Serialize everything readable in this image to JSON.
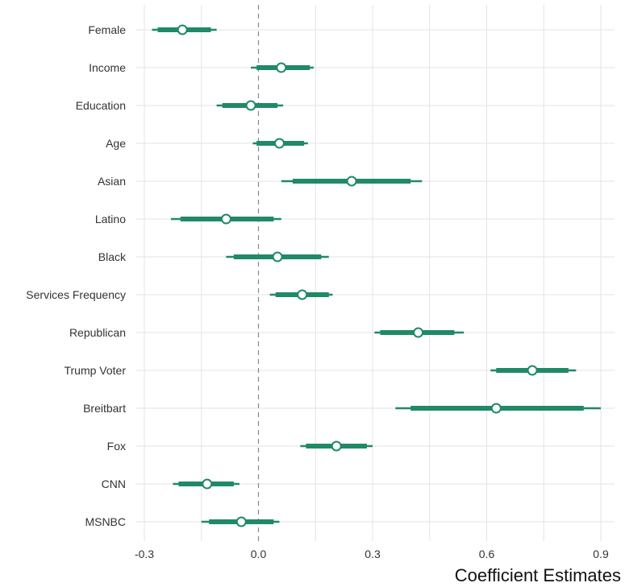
{
  "chart_data": {
    "type": "coefficient-plot",
    "xlabel": "Coefficient Estimates",
    "xlim": [
      -0.32,
      0.92
    ],
    "xticks": [
      -0.3,
      0.0,
      0.3,
      0.6,
      0.9
    ],
    "xtick_labels": [
      "-0.3",
      "0.0",
      "0.3",
      "0.6",
      "0.9"
    ],
    "reference_line": 0,
    "grid": true,
    "colors": {
      "interval": "#1f8a64",
      "point_fill": "#ffffff",
      "point_stroke": "#1f8a64"
    },
    "variables": [
      {
        "label": "Female",
        "estimate": -0.2,
        "ci90": [
          -0.265,
          -0.125
        ],
        "ci95": [
          -0.28,
          -0.11
        ]
      },
      {
        "label": "Income",
        "estimate": 0.06,
        "ci90": [
          -0.005,
          0.135
        ],
        "ci95": [
          -0.02,
          0.145
        ]
      },
      {
        "label": "Education",
        "estimate": -0.02,
        "ci90": [
          -0.095,
          0.05
        ],
        "ci95": [
          -0.11,
          0.065
        ]
      },
      {
        "label": "Age",
        "estimate": 0.055,
        "ci90": [
          -0.005,
          0.12
        ],
        "ci95": [
          -0.015,
          0.13
        ]
      },
      {
        "label": "Asian",
        "estimate": 0.245,
        "ci90": [
          0.09,
          0.4
        ],
        "ci95": [
          0.06,
          0.43
        ]
      },
      {
        "label": "Latino",
        "estimate": -0.085,
        "ci90": [
          -0.205,
          0.04
        ],
        "ci95": [
          -0.23,
          0.06
        ]
      },
      {
        "label": "Black",
        "estimate": 0.05,
        "ci90": [
          -0.065,
          0.165
        ],
        "ci95": [
          -0.085,
          0.185
        ]
      },
      {
        "label": "Services Frequency",
        "estimate": 0.115,
        "ci90": [
          0.045,
          0.185
        ],
        "ci95": [
          0.03,
          0.195
        ]
      },
      {
        "label": "Republican",
        "estimate": 0.42,
        "ci90": [
          0.32,
          0.515
        ],
        "ci95": [
          0.305,
          0.54
        ]
      },
      {
        "label": "Trump Voter",
        "estimate": 0.72,
        "ci90": [
          0.625,
          0.815
        ],
        "ci95": [
          0.61,
          0.835
        ]
      },
      {
        "label": "Breitbart",
        "estimate": 0.625,
        "ci90": [
          0.4,
          0.855
        ],
        "ci95": [
          0.36,
          0.9
        ]
      },
      {
        "label": "Fox",
        "estimate": 0.205,
        "ci90": [
          0.125,
          0.285
        ],
        "ci95": [
          0.11,
          0.3
        ]
      },
      {
        "label": "CNN",
        "estimate": -0.135,
        "ci90": [
          -0.21,
          -0.065
        ],
        "ci95": [
          -0.225,
          -0.05
        ]
      },
      {
        "label": "MSNBC",
        "estimate": -0.045,
        "ci90": [
          -0.13,
          0.04
        ],
        "ci95": [
          -0.15,
          0.055
        ]
      }
    ]
  }
}
